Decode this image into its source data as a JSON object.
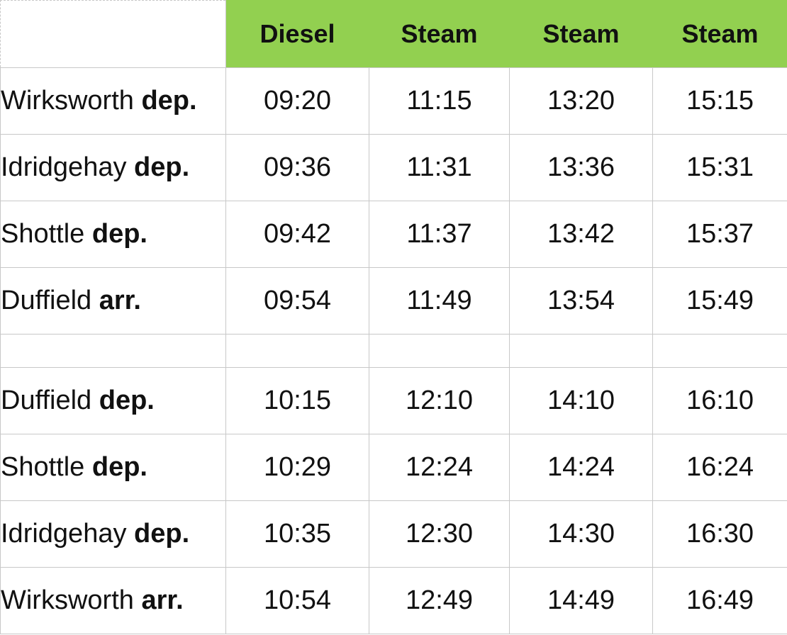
{
  "headers": [
    "Diesel",
    "Steam",
    "Steam",
    "Steam"
  ],
  "outbound": [
    {
      "station": "Wirksworth",
      "qualifier": "dep.",
      "times": [
        "09:20",
        "11:15",
        "13:20",
        "15:15"
      ]
    },
    {
      "station": "Idridgehay",
      "qualifier": "dep.",
      "times": [
        "09:36",
        "11:31",
        "13:36",
        "15:31"
      ]
    },
    {
      "station": "Shottle",
      "qualifier": "dep.",
      "times": [
        "09:42",
        "11:37",
        "13:42",
        "15:37"
      ]
    },
    {
      "station": "Duffield",
      "qualifier": "arr.",
      "times": [
        "09:54",
        "11:49",
        "13:54",
        "15:49"
      ]
    }
  ],
  "inbound": [
    {
      "station": "Duffield",
      "qualifier": "dep.",
      "times": [
        "10:15",
        "12:10",
        "14:10",
        "16:10"
      ]
    },
    {
      "station": "Shottle",
      "qualifier": "dep.",
      "times": [
        "10:29",
        "12:24",
        "14:24",
        "16:24"
      ]
    },
    {
      "station": "Idridgehay",
      "qualifier": "dep.",
      "times": [
        "10:35",
        "12:30",
        "14:30",
        "16:30"
      ]
    },
    {
      "station": "Wirksworth",
      "qualifier": "arr.",
      "times": [
        "10:54",
        "12:49",
        "14:49",
        "16:49"
      ]
    }
  ],
  "colors": {
    "header_background": "#92d050",
    "grid_line": "#c8c8c8"
  }
}
